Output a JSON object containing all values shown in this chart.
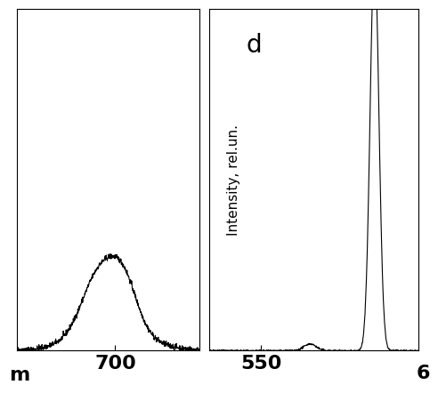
{
  "background_color": "#ffffff",
  "panel_left": {
    "xlim": [
      630,
      760
    ],
    "ylim": [
      0,
      3.0
    ],
    "tick_x": 700,
    "tick_label_x": "700"
  },
  "panel_right": {
    "label": "d",
    "ylabel": "Intensity, rel.un.",
    "xlim": [
      520,
      640
    ],
    "ylim": [
      0,
      3.0
    ],
    "tick_x": 550,
    "tick_label_x": "550"
  },
  "bottom_label": "m",
  "partial_label_6": "6",
  "line_color": "#000000",
  "line_width": 0.8,
  "tick_fontsize": 16,
  "ylabel_fontsize": 11,
  "label_d_fontsize": 20
}
